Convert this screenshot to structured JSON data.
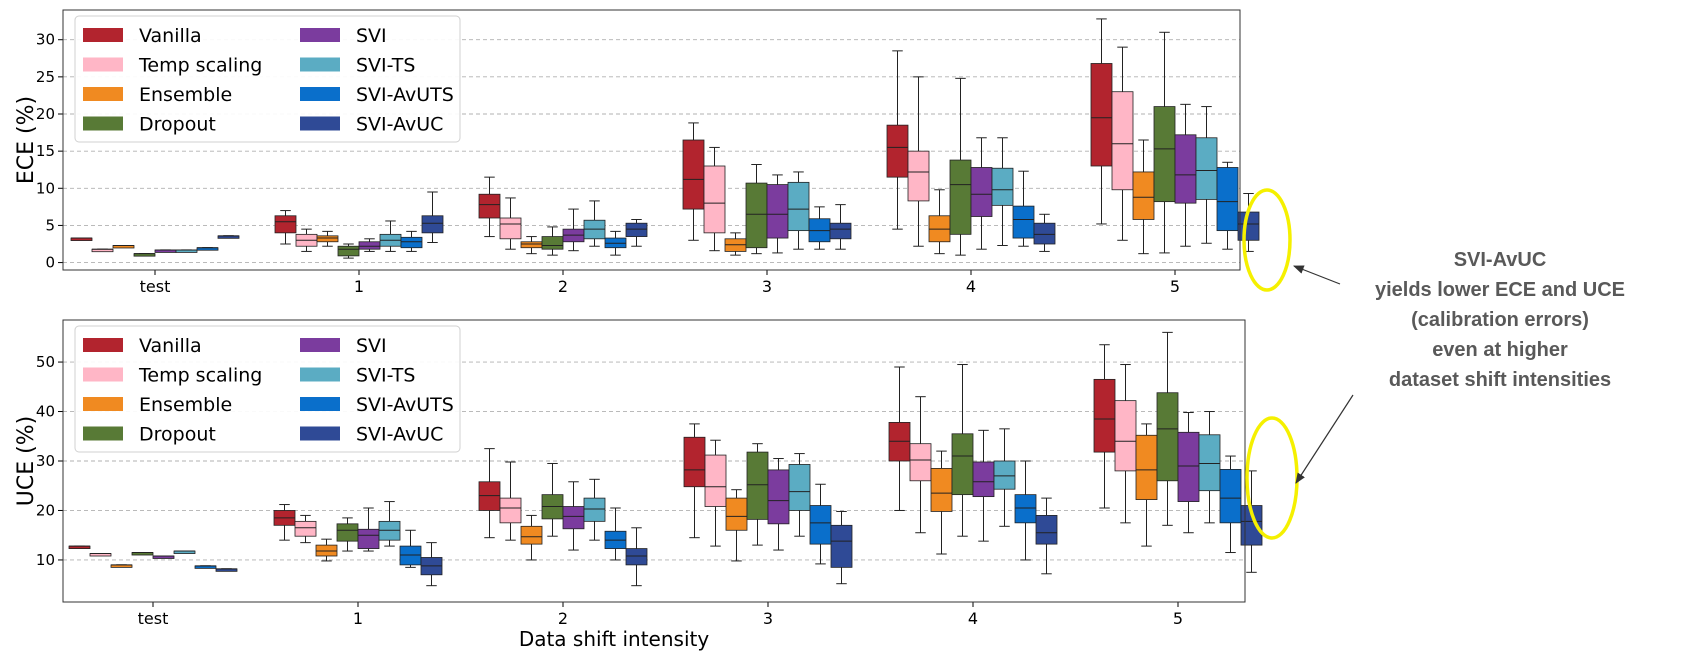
{
  "callout": {
    "lines": [
      "SVI-AvUC",
      "yields lower ECE and UCE",
      "(calibration errors)",
      "even at higher",
      "dataset shift intensities"
    ]
  },
  "colors": {
    "Vanilla": "#b2242e",
    "Temp scaling": "#ffb6c6",
    "Ensemble": "#f08a21",
    "Dropout": "#587a36",
    "SVI": "#7b3c9e",
    "SVI-TS": "#5bacc3",
    "SVI-AvUTS": "#0a6fcb",
    "SVI-AvUC": "#2f4a96",
    "highlight": "#f5f000",
    "callout_text": "#595959"
  },
  "chart_data": [
    {
      "type": "box",
      "ylabel": "ECE (%)",
      "xlabel": "",
      "ylim": [
        -1,
        34
      ],
      "yticks": [
        0,
        5,
        10,
        15,
        20,
        25,
        30
      ],
      "grid": "horizontal-dashed",
      "legend_position": "top-left",
      "categories": [
        "test",
        "1",
        "2",
        "3",
        "4",
        "5"
      ],
      "series": [
        {
          "name": "Vanilla",
          "boxes": [
            {
              "min": 3.3,
              "q1": 3.3,
              "median": 3.3,
              "q3": 3.3,
              "max": 3.3
            },
            {
              "min": 2.5,
              "q1": 4.0,
              "median": 5.5,
              "q3": 6.3,
              "max": 7.0
            },
            {
              "min": 3.5,
              "q1": 6.0,
              "median": 7.8,
              "q3": 9.2,
              "max": 11.5
            },
            {
              "min": 3.0,
              "q1": 7.2,
              "median": 11.2,
              "q3": 16.5,
              "max": 18.8
            },
            {
              "min": 4.5,
              "q1": 11.5,
              "median": 15.5,
              "q3": 18.5,
              "max": 28.5
            },
            {
              "min": 5.2,
              "q1": 13.0,
              "median": 19.5,
              "q3": 26.8,
              "max": 32.8
            }
          ]
        },
        {
          "name": "Temp scaling",
          "boxes": [
            {
              "min": 1.8,
              "q1": 1.8,
              "median": 1.8,
              "q3": 1.8,
              "max": 1.8
            },
            {
              "min": 1.5,
              "q1": 2.2,
              "median": 3.0,
              "q3": 3.8,
              "max": 4.5
            },
            {
              "min": 1.8,
              "q1": 3.2,
              "median": 5.2,
              "q3": 6.0,
              "max": 8.7
            },
            {
              "min": 1.6,
              "q1": 4.0,
              "median": 8.0,
              "q3": 13.0,
              "max": 15.5
            },
            {
              "min": 2.2,
              "q1": 8.3,
              "median": 12.2,
              "q3": 15.0,
              "max": 25.0
            },
            {
              "min": 3.0,
              "q1": 9.8,
              "median": 16.0,
              "q3": 23.0,
              "max": 29.0
            }
          ]
        },
        {
          "name": "Ensemble",
          "boxes": [
            {
              "min": 2.3,
              "q1": 2.3,
              "median": 2.3,
              "q3": 2.3,
              "max": 2.3
            },
            {
              "min": 2.2,
              "q1": 2.8,
              "median": 3.3,
              "q3": 3.6,
              "max": 4.2
            },
            {
              "min": 1.2,
              "q1": 2.0,
              "median": 2.5,
              "q3": 2.8,
              "max": 3.5
            },
            {
              "min": 1.0,
              "q1": 1.5,
              "median": 2.4,
              "q3": 3.2,
              "max": 4.0
            },
            {
              "min": 1.2,
              "q1": 2.8,
              "median": 4.5,
              "q3": 6.3,
              "max": 9.8
            },
            {
              "min": 1.2,
              "q1": 5.8,
              "median": 8.8,
              "q3": 12.2,
              "max": 16.5
            }
          ]
        },
        {
          "name": "Dropout",
          "boxes": [
            {
              "min": 1.2,
              "q1": 1.2,
              "median": 1.2,
              "q3": 1.2,
              "max": 1.2
            },
            {
              "min": 0.6,
              "q1": 0.9,
              "median": 1.8,
              "q3": 2.2,
              "max": 2.5
            },
            {
              "min": 1.0,
              "q1": 1.8,
              "median": 2.3,
              "q3": 3.5,
              "max": 4.8
            },
            {
              "min": 1.2,
              "q1": 2.0,
              "median": 6.5,
              "q3": 10.7,
              "max": 13.2
            },
            {
              "min": 1.0,
              "q1": 3.8,
              "median": 10.5,
              "q3": 13.8,
              "max": 24.8
            },
            {
              "min": 1.3,
              "q1": 8.2,
              "median": 15.3,
              "q3": 21.0,
              "max": 31.0
            }
          ]
        },
        {
          "name": "SVI",
          "boxes": [
            {
              "min": 1.7,
              "q1": 1.7,
              "median": 1.7,
              "q3": 1.7,
              "max": 1.7
            },
            {
              "min": 1.5,
              "q1": 1.8,
              "median": 2.2,
              "q3": 2.8,
              "max": 3.2
            },
            {
              "min": 1.6,
              "q1": 2.8,
              "median": 3.7,
              "q3": 4.5,
              "max": 7.2
            },
            {
              "min": 1.3,
              "q1": 3.3,
              "median": 6.5,
              "q3": 10.5,
              "max": 11.8
            },
            {
              "min": 1.8,
              "q1": 6.2,
              "median": 9.2,
              "q3": 12.8,
              "max": 16.8
            },
            {
              "min": 2.2,
              "q1": 8.0,
              "median": 11.8,
              "q3": 17.2,
              "max": 21.3
            }
          ]
        },
        {
          "name": "SVI-TS",
          "boxes": [
            {
              "min": 1.7,
              "q1": 1.7,
              "median": 1.7,
              "q3": 1.7,
              "max": 1.7
            },
            {
              "min": 1.5,
              "q1": 2.2,
              "median": 3.0,
              "q3": 3.8,
              "max": 5.6
            },
            {
              "min": 2.2,
              "q1": 3.2,
              "median": 4.5,
              "q3": 5.7,
              "max": 8.3
            },
            {
              "min": 1.8,
              "q1": 4.3,
              "median": 7.2,
              "q3": 10.8,
              "max": 12.2
            },
            {
              "min": 2.3,
              "q1": 7.7,
              "median": 9.8,
              "q3": 12.7,
              "max": 16.8
            },
            {
              "min": 2.6,
              "q1": 8.5,
              "median": 12.4,
              "q3": 16.8,
              "max": 21.0
            }
          ]
        },
        {
          "name": "SVI-AvUTS",
          "boxes": [
            {
              "min": 2.0,
              "q1": 2.0,
              "median": 2.0,
              "q3": 2.0,
              "max": 2.0
            },
            {
              "min": 1.5,
              "q1": 2.0,
              "median": 2.8,
              "q3": 3.4,
              "max": 4.2
            },
            {
              "min": 1.0,
              "q1": 2.0,
              "median": 2.6,
              "q3": 3.3,
              "max": 4.2
            },
            {
              "min": 1.8,
              "q1": 2.8,
              "median": 4.3,
              "q3": 5.9,
              "max": 7.5
            },
            {
              "min": 2.2,
              "q1": 3.3,
              "median": 5.8,
              "q3": 7.6,
              "max": 12.3
            },
            {
              "min": 1.8,
              "q1": 4.3,
              "median": 8.2,
              "q3": 12.8,
              "max": 13.5
            }
          ]
        },
        {
          "name": "SVI-AvUC",
          "boxes": [
            {
              "min": 3.6,
              "q1": 3.6,
              "median": 3.6,
              "q3": 3.6,
              "max": 3.6
            },
            {
              "min": 2.7,
              "q1": 4.0,
              "median": 5.3,
              "q3": 6.3,
              "max": 9.5
            },
            {
              "min": 2.2,
              "q1": 3.5,
              "median": 4.5,
              "q3": 5.3,
              "max": 5.8
            },
            {
              "min": 1.8,
              "q1": 3.2,
              "median": 4.5,
              "q3": 5.3,
              "max": 7.8
            },
            {
              "min": 1.5,
              "q1": 2.5,
              "median": 3.8,
              "q3": 5.3,
              "max": 6.5
            },
            {
              "min": 1.5,
              "q1": 3.0,
              "median": 5.2,
              "q3": 6.8,
              "max": 9.3
            }
          ]
        }
      ]
    },
    {
      "type": "box",
      "ylabel": "UCE (%)",
      "xlabel": "Data shift intensity",
      "ylim": [
        1.5,
        58.5
      ],
      "yticks": [
        10,
        20,
        30,
        40,
        50
      ],
      "grid": "horizontal-dashed",
      "legend_position": "top-left",
      "categories": [
        "test",
        "1",
        "2",
        "3",
        "4",
        "5"
      ],
      "series": [
        {
          "name": "Vanilla",
          "boxes": [
            {
              "min": 12.8,
              "q1": 12.8,
              "median": 12.8,
              "q3": 12.8,
              "max": 12.8
            },
            {
              "min": 14.0,
              "q1": 17.0,
              "median": 18.5,
              "q3": 20.0,
              "max": 21.2
            },
            {
              "min": 14.5,
              "q1": 20.0,
              "median": 23.0,
              "q3": 25.8,
              "max": 32.5
            },
            {
              "min": 14.5,
              "q1": 24.8,
              "median": 28.2,
              "q3": 34.8,
              "max": 37.5
            },
            {
              "min": 20.0,
              "q1": 30.0,
              "median": 34.0,
              "q3": 37.8,
              "max": 49.0
            },
            {
              "min": 20.5,
              "q1": 31.8,
              "median": 38.5,
              "q3": 46.5,
              "max": 53.5
            }
          ]
        },
        {
          "name": "Temp scaling",
          "boxes": [
            {
              "min": 11.3,
              "q1": 11.3,
              "median": 11.3,
              "q3": 11.3,
              "max": 11.3
            },
            {
              "min": 13.5,
              "q1": 14.8,
              "median": 16.5,
              "q3": 17.8,
              "max": 19.0
            },
            {
              "min": 14.0,
              "q1": 17.5,
              "median": 20.5,
              "q3": 22.5,
              "max": 29.8
            },
            {
              "min": 12.8,
              "q1": 20.8,
              "median": 24.8,
              "q3": 31.2,
              "max": 34.2
            },
            {
              "min": 15.5,
              "q1": 26.0,
              "median": 30.2,
              "q3": 33.5,
              "max": 43.0
            },
            {
              "min": 17.5,
              "q1": 28.0,
              "median": 34.0,
              "q3": 42.2,
              "max": 49.5
            }
          ]
        },
        {
          "name": "Ensemble",
          "boxes": [
            {
              "min": 9.0,
              "q1": 9.0,
              "median": 9.0,
              "q3": 9.0,
              "max": 9.0
            },
            {
              "min": 9.8,
              "q1": 10.8,
              "median": 11.8,
              "q3": 13.0,
              "max": 14.2
            },
            {
              "min": 10.0,
              "q1": 13.2,
              "median": 14.7,
              "q3": 16.8,
              "max": 19.0
            },
            {
              "min": 9.8,
              "q1": 16.0,
              "median": 18.8,
              "q3": 22.5,
              "max": 24.2
            },
            {
              "min": 11.2,
              "q1": 19.8,
              "median": 23.5,
              "q3": 28.5,
              "max": 32.0
            },
            {
              "min": 12.8,
              "q1": 22.2,
              "median": 28.2,
              "q3": 35.2,
              "max": 37.5
            }
          ]
        },
        {
          "name": "Dropout",
          "boxes": [
            {
              "min": 11.5,
              "q1": 11.5,
              "median": 11.5,
              "q3": 11.5,
              "max": 11.5
            },
            {
              "min": 11.8,
              "q1": 13.8,
              "median": 16.0,
              "q3": 17.3,
              "max": 18.5
            },
            {
              "min": 14.8,
              "q1": 18.3,
              "median": 20.8,
              "q3": 23.2,
              "max": 29.5
            },
            {
              "min": 13.0,
              "q1": 18.2,
              "median": 25.2,
              "q3": 31.8,
              "max": 33.5
            },
            {
              "min": 14.8,
              "q1": 23.2,
              "median": 31.0,
              "q3": 35.5,
              "max": 49.5
            },
            {
              "min": 17.0,
              "q1": 26.0,
              "median": 36.5,
              "q3": 43.8,
              "max": 56.0
            }
          ]
        },
        {
          "name": "SVI",
          "boxes": [
            {
              "min": 10.8,
              "q1": 10.8,
              "median": 10.8,
              "q3": 10.8,
              "max": 10.8
            },
            {
              "min": 11.8,
              "q1": 12.3,
              "median": 15.0,
              "q3": 16.2,
              "max": 20.5
            },
            {
              "min": 12.0,
              "q1": 16.3,
              "median": 18.8,
              "q3": 20.8,
              "max": 25.8
            },
            {
              "min": 12.0,
              "q1": 17.3,
              "median": 22.0,
              "q3": 28.2,
              "max": 30.5
            },
            {
              "min": 13.8,
              "q1": 22.8,
              "median": 25.8,
              "q3": 29.8,
              "max": 36.2
            },
            {
              "min": 15.5,
              "q1": 21.8,
              "median": 29.0,
              "q3": 35.8,
              "max": 39.8
            }
          ]
        },
        {
          "name": "SVI-TS",
          "boxes": [
            {
              "min": 11.8,
              "q1": 11.8,
              "median": 11.8,
              "q3": 11.8,
              "max": 11.8
            },
            {
              "min": 12.8,
              "q1": 14.0,
              "median": 16.0,
              "q3": 17.8,
              "max": 21.8
            },
            {
              "min": 14.0,
              "q1": 17.8,
              "median": 20.3,
              "q3": 22.5,
              "max": 26.3
            },
            {
              "min": 14.8,
              "q1": 20.0,
              "median": 23.8,
              "q3": 29.3,
              "max": 31.5
            },
            {
              "min": 16.8,
              "q1": 24.3,
              "median": 27.0,
              "q3": 30.0,
              "max": 36.5
            },
            {
              "min": 17.5,
              "q1": 24.0,
              "median": 29.5,
              "q3": 35.3,
              "max": 40.0
            }
          ]
        },
        {
          "name": "SVI-AvUTS",
          "boxes": [
            {
              "min": 8.8,
              "q1": 8.8,
              "median": 8.8,
              "q3": 8.8,
              "max": 8.8
            },
            {
              "min": 8.5,
              "q1": 9.0,
              "median": 11.0,
              "q3": 12.8,
              "max": 16.0
            },
            {
              "min": 10.0,
              "q1": 12.3,
              "median": 14.0,
              "q3": 15.8,
              "max": 20.5
            },
            {
              "min": 9.2,
              "q1": 13.2,
              "median": 17.5,
              "q3": 21.0,
              "max": 25.3
            },
            {
              "min": 10.0,
              "q1": 17.5,
              "median": 20.5,
              "q3": 23.2,
              "max": 30.0
            },
            {
              "min": 11.5,
              "q1": 17.5,
              "median": 22.5,
              "q3": 28.3,
              "max": 31.0
            }
          ]
        },
        {
          "name": "SVI-AvUC",
          "boxes": [
            {
              "min": 8.2,
              "q1": 8.2,
              "median": 8.2,
              "q3": 8.2,
              "max": 8.2
            },
            {
              "min": 4.8,
              "q1": 7.0,
              "median": 8.8,
              "q3": 10.5,
              "max": 13.5
            },
            {
              "min": 4.8,
              "q1": 9.0,
              "median": 10.8,
              "q3": 12.3,
              "max": 16.5
            },
            {
              "min": 5.2,
              "q1": 8.5,
              "median": 13.8,
              "q3": 17.0,
              "max": 19.8
            },
            {
              "min": 7.2,
              "q1": 13.2,
              "median": 15.5,
              "q3": 19.0,
              "max": 22.5
            },
            {
              "min": 7.5,
              "q1": 13.0,
              "median": 17.8,
              "q3": 21.0,
              "max": 28.0
            }
          ]
        }
      ]
    }
  ]
}
